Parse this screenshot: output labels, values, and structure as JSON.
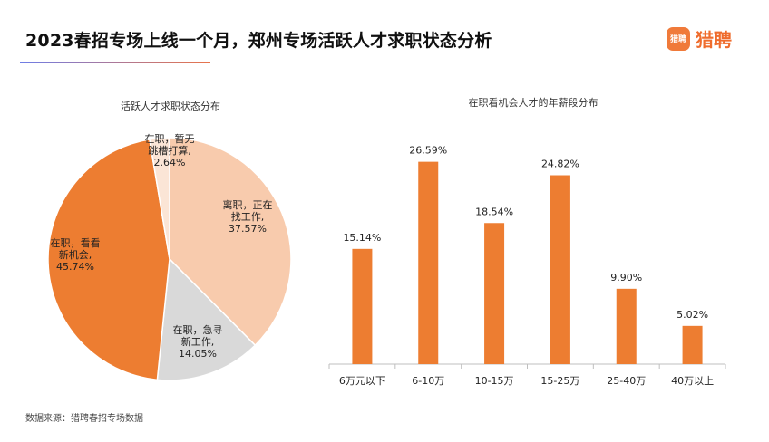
{
  "header": {
    "title": "2023春招专场上线一个月，郑州专场活跃人才求职状态分析",
    "logo_badge": "猎聘",
    "logo_text": "猎聘"
  },
  "footer": {
    "source": "数据来源：猎聘春招专场数据"
  },
  "colors": {
    "accent": "#ED7D31",
    "light": "#F8CBAD",
    "gray": "#D9D9D9",
    "cream": "#FBE5D6"
  },
  "chart_data": [
    {
      "type": "pie",
      "title": "活跃人才求职状态分布",
      "slices": [
        {
          "label_lines": [
            "离职，正在",
            "找工作,",
            "37.57%"
          ],
          "value": 37.57,
          "color": "#F8CBAD"
        },
        {
          "label_lines": [
            "在职，急寻",
            "新工作,",
            "14.05%"
          ],
          "value": 14.05,
          "color": "#D9D9D9"
        },
        {
          "label_lines": [
            "在职，看看",
            "新机会,",
            "45.74%"
          ],
          "value": 45.74,
          "color": "#ED7D31"
        },
        {
          "label_lines": [
            "在职，暂无",
            "跳槽打算,",
            "2.64%"
          ],
          "value": 2.64,
          "color": "#FBE5D6"
        }
      ]
    },
    {
      "type": "bar",
      "title": "在职看机会人才的年薪段分布",
      "categories": [
        "6万元以下",
        "6-10万",
        "10-15万",
        "15-25万",
        "25-40万",
        "40万以上"
      ],
      "values": [
        15.14,
        26.59,
        18.54,
        24.82,
        9.9,
        5.02
      ],
      "value_labels": [
        "15.14%",
        "26.59%",
        "18.54%",
        "24.82%",
        "9.90%",
        "5.02%"
      ],
      "ylim": [
        0,
        30
      ],
      "color": "#ED7D31"
    }
  ]
}
